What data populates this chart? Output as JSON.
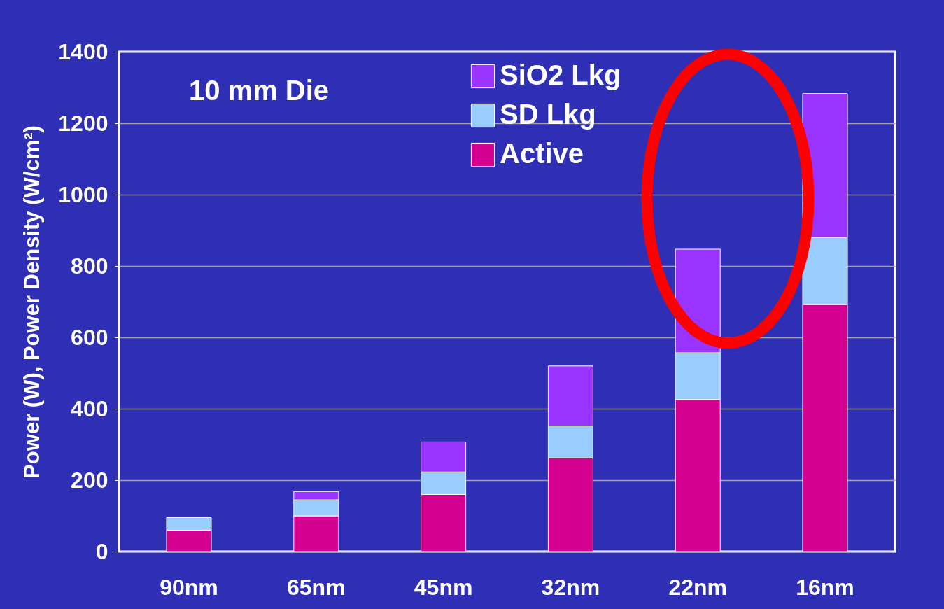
{
  "chart_data": {
    "type": "bar",
    "stacked": true,
    "ylabel": "Power (W), Power Density (W/cm²)",
    "annotations": [
      "10 mm Die"
    ],
    "categories": [
      "90nm",
      "65nm",
      "45nm",
      "32nm",
      "22nm",
      "16nm"
    ],
    "series": [
      {
        "name": "Active",
        "color": "#d4008f",
        "values": [
          60,
          100,
          160,
          262,
          426,
          692
        ]
      },
      {
        "name": "SD Lkg",
        "color": "#99ccff",
        "values": [
          35,
          45,
          63,
          90,
          131,
          188
        ]
      },
      {
        "name": "SiO2 Lkg",
        "color": "#9933ff",
        "values": [
          null,
          23,
          84,
          168,
          290,
          403
        ]
      }
    ],
    "ylim": [
      0,
      1400
    ],
    "yticks": [
      0,
      200,
      400,
      600,
      800,
      1000,
      1200,
      1400
    ],
    "grid": "y",
    "legend": "top right"
  }
}
